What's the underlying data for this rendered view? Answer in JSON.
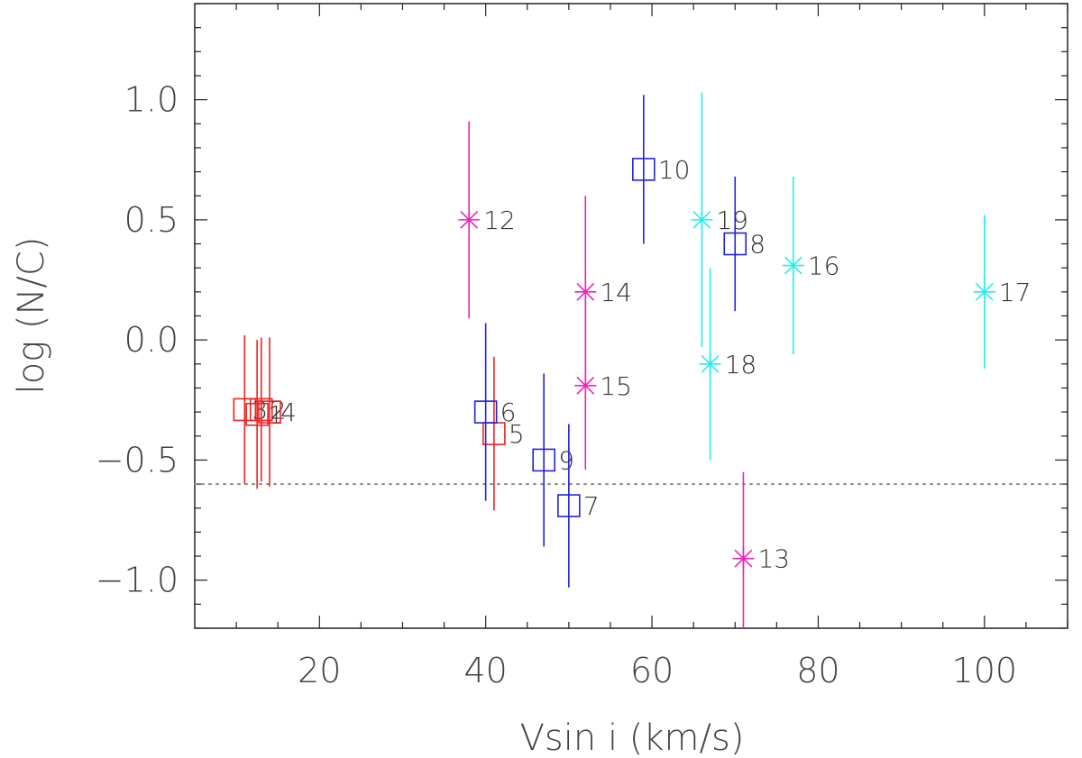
{
  "chart_data": {
    "type": "scatter",
    "title": "",
    "xlabel": "Vsin i (km/s)",
    "ylabel": "log (N/C)",
    "xlim": [
      5,
      110
    ],
    "ylim": [
      -1.2,
      1.4
    ],
    "x_ticks": [
      20,
      40,
      60,
      80,
      100
    ],
    "x_tick_labels": [
      "20",
      "40",
      "60",
      "80",
      "100"
    ],
    "y_ticks": [
      -1.0,
      -0.5,
      0.0,
      0.5,
      1.0
    ],
    "y_tick_labels": [
      "−1.0",
      "−0.5",
      "0.0",
      "0.5",
      "1.0"
    ],
    "grid": false,
    "reference_line": {
      "y": -0.6,
      "style": "dotted",
      "color": "#888888"
    },
    "groups": [
      {
        "marker": "square",
        "color": "#ee2222",
        "points": [
          {
            "label": "3",
            "x": 11,
            "y": -0.29,
            "err": 0.31
          },
          {
            "label": "2",
            "x": 13,
            "y": -0.29,
            "err": 0.3
          },
          {
            "label": "1",
            "x": 12.5,
            "y": -0.31,
            "err": 0.31
          },
          {
            "label": "4",
            "x": 14,
            "y": -0.3,
            "err": 0.31
          },
          {
            "label": "5",
            "x": 41,
            "y": -0.39,
            "err": 0.32
          }
        ]
      },
      {
        "marker": "square",
        "color": "#2222dd",
        "points": [
          {
            "label": "6",
            "x": 40,
            "y": -0.3,
            "err": 0.37
          },
          {
            "label": "9",
            "x": 47,
            "y": -0.5,
            "err": 0.36
          },
          {
            "label": "7",
            "x": 50,
            "y": -0.69,
            "err": 0.34
          },
          {
            "label": "10",
            "x": 59,
            "y": 0.71,
            "err": 0.31
          },
          {
            "label": "8",
            "x": 70,
            "y": 0.4,
            "err": 0.28
          }
        ]
      },
      {
        "marker": "asterisk",
        "color": "#ee22bb",
        "points": [
          {
            "label": "12",
            "x": 38,
            "y": 0.5,
            "err": 0.41
          },
          {
            "label": "14",
            "x": 52,
            "y": 0.2,
            "err": 0.4
          },
          {
            "label": "15",
            "x": 52,
            "y": -0.19,
            "err": 0.35
          },
          {
            "label": "13",
            "x": 71,
            "y": -0.91,
            "err": 0.36
          }
        ]
      },
      {
        "marker": "asterisk",
        "color": "#22eeee",
        "points": [
          {
            "label": "19",
            "x": 66,
            "y": 0.5,
            "err": 0.53
          },
          {
            "label": "18",
            "x": 67,
            "y": -0.1,
            "err": 0.4
          },
          {
            "label": "16",
            "x": 77,
            "y": 0.31,
            "err": 0.37
          },
          {
            "label": "17",
            "x": 100,
            "y": 0.2,
            "err": 0.32
          }
        ]
      }
    ]
  }
}
